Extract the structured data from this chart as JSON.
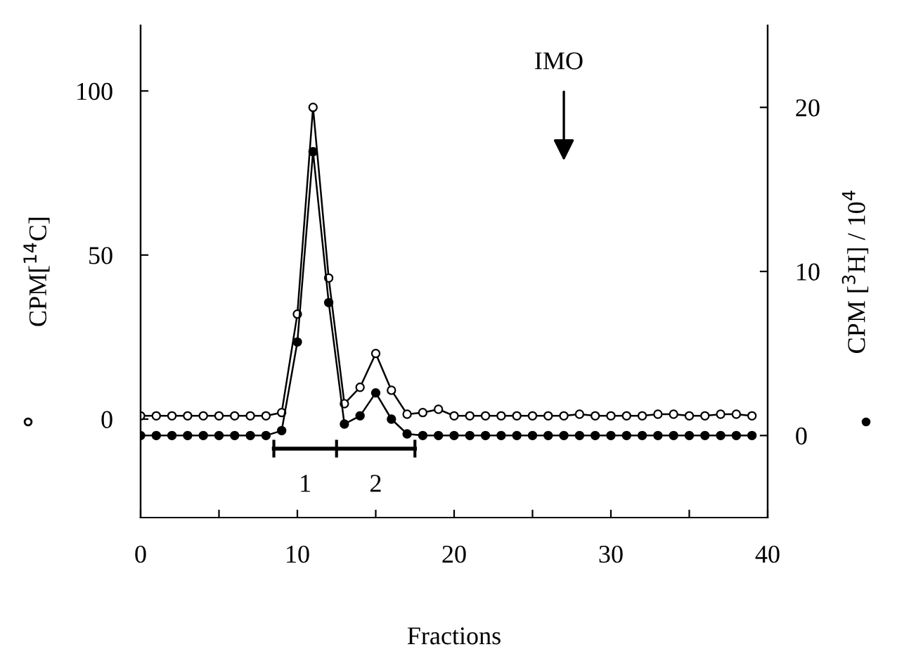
{
  "chart_data": {
    "type": "line",
    "xlabel": "Fractions",
    "ylabel": "CPM[$^{14}$C]",
    "y2label": "CPM [$^{3}$H] / 10$^{4}$",
    "x": [
      0,
      1,
      2,
      3,
      4,
      5,
      6,
      7,
      8,
      9,
      10,
      11,
      12,
      13,
      14,
      15,
      16,
      17,
      18,
      19,
      20,
      21,
      22,
      23,
      24,
      25,
      26,
      27,
      28,
      29,
      30,
      31,
      32,
      33,
      34,
      35,
      36,
      37,
      38,
      39
    ],
    "series": [
      {
        "color": "#ffffff",
        "marker": "circle",
        "values": [
          1,
          1,
          1,
          1,
          1,
          1,
          1,
          1,
          1,
          2,
          32,
          95,
          43,
          4.7,
          9.7,
          20,
          8.8,
          1.5,
          2,
          3,
          1,
          1,
          1,
          1,
          1,
          1,
          1,
          1,
          1.5,
          1,
          1,
          1,
          1,
          1.5,
          1.5,
          1,
          1,
          1.5,
          1.5,
          1
        ]
      },
      {
        "color": "#000000",
        "marker": "circle",
        "axis": "y2",
        "values": [
          0,
          0,
          0,
          0,
          0,
          0,
          0,
          0,
          0,
          0.3,
          5.7,
          17.3,
          8.1,
          0.7,
          1.2,
          2.6,
          1.0,
          0.1,
          0,
          0,
          0,
          0,
          0,
          0,
          0,
          0,
          0,
          0,
          0,
          0,
          0,
          0,
          0,
          0,
          0,
          0,
          0,
          0,
          0,
          0
        ]
      }
    ],
    "xlim": [
      0,
      40
    ],
    "xticks": [
      0,
      {
        "value": 5,
        "label": null
      },
      10,
      {
        "value": 15,
        "label": null
      },
      20,
      {
        "value": 25,
        "label": null
      },
      30,
      {
        "value": 35,
        "label": null
      },
      40
    ],
    "ylim": [
      -30,
      120
    ],
    "yticks": [
      0,
      50,
      100
    ],
    "y2lim": [
      -5,
      25
    ],
    "y2ticks": [
      0,
      10,
      20
    ],
    "annotations": [
      "1",
      "2",
      "IMO"
    ],
    "grid": false
  }
}
